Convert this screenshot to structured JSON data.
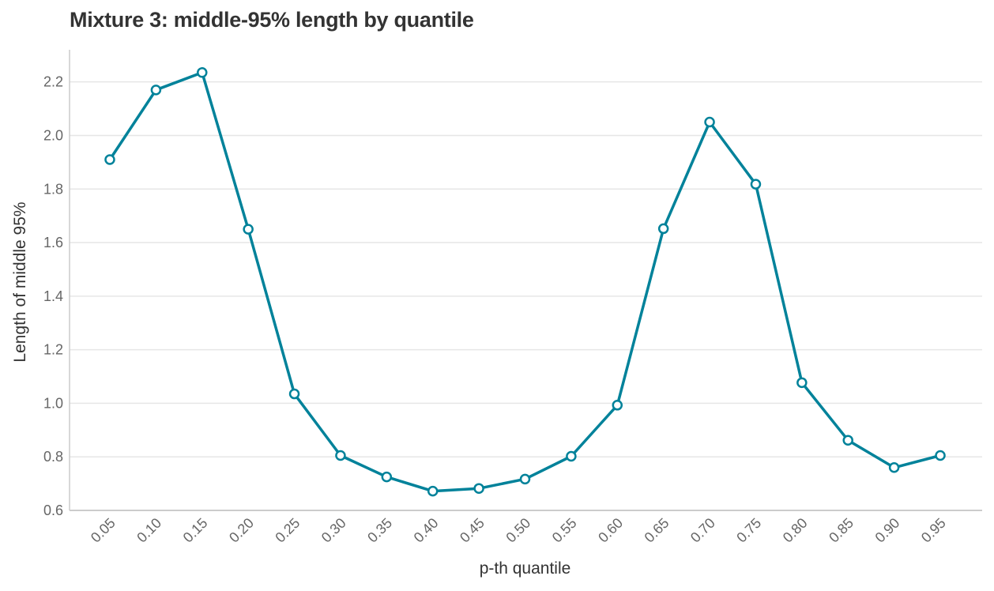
{
  "chart_data": {
    "type": "line",
    "title": "Mixture 3: middle-95% length by quantile",
    "xlabel": "p-th quantile",
    "ylabel": "Length of middle 95%",
    "categories": [
      "0.05",
      "0.10",
      "0.15",
      "0.20",
      "0.25",
      "0.30",
      "0.35",
      "0.40",
      "0.45",
      "0.50",
      "0.55",
      "0.60",
      "0.65",
      "0.70",
      "0.75",
      "0.80",
      "0.85",
      "0.90",
      "0.95"
    ],
    "series": [
      {
        "values": [
          1.91,
          2.17,
          2.235,
          1.65,
          1.035,
          0.805,
          0.725,
          0.672,
          0.682,
          0.717,
          0.802,
          0.993,
          1.652,
          2.05,
          1.818,
          1.077,
          0.862,
          0.76,
          0.805
        ],
        "color": "#00829a"
      }
    ],
    "ylim": [
      0.6,
      2.32
    ],
    "yticks": [
      0.6,
      0.8,
      1.0,
      1.2,
      1.4,
      1.6,
      1.8,
      2.0,
      2.2
    ],
    "grid": "horizontal",
    "legend": "none"
  }
}
